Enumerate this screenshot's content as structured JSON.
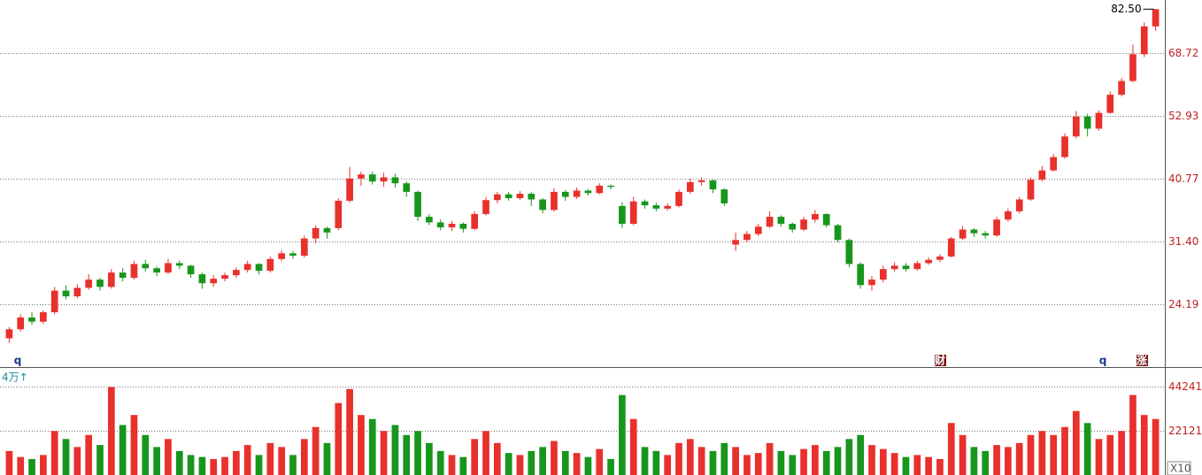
{
  "chart_data": {
    "type": "candlestick",
    "log_scale": true,
    "grid": true,
    "up_color": "#e8302c",
    "down_color": "#17961c",
    "ylim": [
      18.63,
      85.7
    ],
    "yticks": [
      24.19,
      {
        "value": 31.4,
        "label": "31.40"
      },
      40.77,
      52.93,
      68.72
    ],
    "max_annotation": {
      "value": 82.5,
      "label": "82.50"
    },
    "markers": [
      "q",
      "财",
      "q",
      "涨"
    ],
    "open": [
      21.0,
      21.8,
      22.9,
      22.5,
      23.4,
      25.6,
      25.0,
      25.9,
      26.8,
      26.0,
      27.6,
      27.0,
      28.6,
      28.1,
      27.6,
      28.7,
      28.4,
      27.4,
      26.4,
      26.9,
      27.3,
      27.9,
      28.6,
      27.8,
      29.2,
      29.9,
      29.6,
      31.8,
      33.2,
      33.2,
      37.2,
      40.8,
      41.5,
      40.3,
      41.0,
      40.0,
      38.6,
      34.8,
      34.0,
      33.3,
      33.8,
      33.1,
      35.2,
      37.3,
      38.2,
      37.6,
      38.3,
      37.4,
      35.8,
      38.6,
      37.8,
      38.8,
      38.4,
      39.6,
      36.4,
      33.8,
      37.1,
      36.5,
      36.0,
      36.4,
      38.6,
      40.2,
      40.5,
      39.0,
      31.0,
      31.6,
      32.4,
      33.4,
      34.8,
      33.8,
      33.0,
      34.4,
      35.2,
      33.6,
      31.6,
      28.6,
      26.2,
      26.8,
      28.0,
      28.4,
      28.0,
      28.7,
      29.1,
      29.5,
      31.8,
      33.0,
      32.5,
      32.2,
      34.4,
      35.6,
      37.4,
      40.6,
      42.2,
      44.6,
      48.6,
      52.8,
      50.2,
      53.6,
      57.8,
      61.2,
      68.4,
      76.8
    ],
    "high": [
      22.0,
      23.2,
      23.4,
      23.6,
      26.0,
      26.2,
      26.3,
      27.4,
      27.0,
      28.0,
      28.1,
      29.0,
      29.1,
      28.3,
      29.2,
      29.0,
      28.5,
      27.6,
      27.3,
      27.6,
      28.2,
      29.0,
      28.7,
      29.5,
      30.3,
      30.2,
      32.2,
      33.6,
      33.4,
      37.6,
      42.8,
      42.0,
      42.0,
      41.8,
      41.6,
      40.3,
      38.8,
      35.2,
      34.4,
      34.2,
      34.0,
      35.6,
      37.8,
      38.6,
      38.6,
      38.7,
      38.6,
      37.6,
      39.2,
      38.9,
      39.3,
      39.0,
      40.0,
      39.8,
      37.0,
      37.8,
      37.4,
      36.9,
      36.8,
      39.0,
      40.8,
      41.0,
      40.6,
      39.2,
      32.6,
      32.8,
      33.8,
      35.6,
      35.0,
      34.0,
      34.8,
      35.8,
      35.3,
      33.8,
      31.8,
      28.8,
      27.2,
      28.4,
      28.8,
      28.7,
      29.0,
      29.4,
      29.8,
      32.0,
      33.5,
      33.2,
      32.8,
      34.8,
      36.0,
      37.8,
      41.0,
      43.0,
      45.2,
      49.2,
      54.0,
      53.4,
      54.2,
      58.6,
      62.0,
      71.2,
      78.0,
      82.5
    ],
    "low": [
      20.6,
      21.6,
      22.2,
      22.3,
      23.2,
      24.7,
      24.8,
      25.7,
      25.6,
      25.8,
      26.6,
      26.8,
      27.7,
      27.2,
      27.4,
      28.0,
      27.0,
      25.8,
      26.0,
      26.6,
      27.0,
      27.6,
      27.4,
      27.6,
      28.9,
      29.2,
      29.4,
      31.2,
      31.8,
      32.9,
      36.9,
      39.6,
      39.8,
      39.4,
      39.3,
      37.8,
      34.2,
      33.6,
      32.9,
      32.8,
      32.6,
      32.9,
      35.0,
      36.8,
      37.2,
      37.3,
      36.4,
      35.3,
      35.6,
      37.2,
      37.5,
      38.0,
      38.2,
      39.0,
      33.2,
      33.6,
      36.0,
      35.6,
      35.7,
      36.2,
      38.3,
      39.6,
      38.4,
      36.4,
      30.2,
      31.3,
      32.1,
      33.2,
      33.4,
      32.6,
      32.8,
      34.0,
      33.3,
      31.3,
      28.2,
      25.8,
      25.6,
      26.5,
      27.7,
      27.7,
      27.8,
      28.5,
      28.8,
      29.4,
      31.6,
      32.0,
      31.8,
      32.0,
      34.1,
      35.3,
      37.2,
      40.3,
      42.0,
      44.3,
      48.2,
      48.6,
      49.8,
      53.4,
      57.4,
      60.8,
      67.6,
      75.4
    ],
    "close": [
      21.8,
      22.9,
      22.5,
      23.4,
      25.6,
      25.0,
      25.9,
      26.8,
      26.0,
      27.6,
      27.0,
      28.6,
      28.1,
      27.6,
      28.7,
      28.4,
      27.4,
      26.4,
      26.9,
      27.3,
      27.9,
      28.6,
      27.8,
      29.2,
      29.9,
      29.6,
      31.8,
      33.2,
      32.6,
      37.2,
      40.8,
      41.5,
      40.3,
      41.0,
      40.0,
      38.6,
      34.8,
      34.0,
      33.3,
      33.8,
      33.1,
      35.2,
      37.3,
      38.2,
      37.6,
      38.3,
      37.4,
      35.8,
      38.6,
      37.8,
      38.8,
      38.4,
      39.6,
      39.4,
      33.8,
      37.1,
      36.5,
      36.0,
      36.4,
      38.6,
      40.2,
      40.5,
      39.0,
      36.8,
      31.6,
      32.4,
      33.4,
      34.8,
      33.8,
      33.0,
      34.4,
      35.2,
      33.6,
      31.6,
      28.6,
      26.2,
      26.8,
      28.0,
      28.4,
      28.0,
      28.7,
      29.1,
      29.5,
      31.8,
      33.0,
      32.5,
      32.2,
      34.4,
      35.6,
      37.4,
      40.6,
      42.2,
      44.6,
      48.6,
      52.8,
      50.2,
      53.6,
      57.8,
      61.2,
      68.4,
      76.8,
      82.5
    ],
    "volume_label": "4万↑",
    "volume_unit": "X10",
    "vlim": [
      0,
      53973
    ],
    "vticks": [
      22121,
      44241
    ],
    "volume": [
      12000,
      9000,
      8000,
      10000,
      22000,
      18000,
      14000,
      20000,
      15000,
      44000,
      25000,
      30000,
      20000,
      14000,
      18000,
      12000,
      10000,
      9000,
      8000,
      9000,
      12000,
      15000,
      10000,
      16000,
      14000,
      10000,
      18000,
      24000,
      16000,
      36000,
      43000,
      30000,
      28000,
      22000,
      25000,
      20000,
      22000,
      16000,
      12000,
      10000,
      9000,
      18000,
      22000,
      16000,
      11000,
      10000,
      12000,
      14000,
      17000,
      12000,
      11000,
      9000,
      13000,
      8000,
      40000,
      28000,
      14000,
      12000,
      10000,
      16000,
      18000,
      14000,
      12000,
      16000,
      14000,
      10000,
      11000,
      16000,
      12000,
      10000,
      13000,
      15000,
      12000,
      14000,
      18000,
      20000,
      15000,
      13000,
      11000,
      9000,
      10000,
      9000,
      8000,
      26000,
      20000,
      14000,
      12000,
      15000,
      14000,
      16000,
      20000,
      22000,
      20000,
      24000,
      32000,
      26000,
      18000,
      20000,
      22000,
      40000,
      30000,
      28000
    ]
  }
}
